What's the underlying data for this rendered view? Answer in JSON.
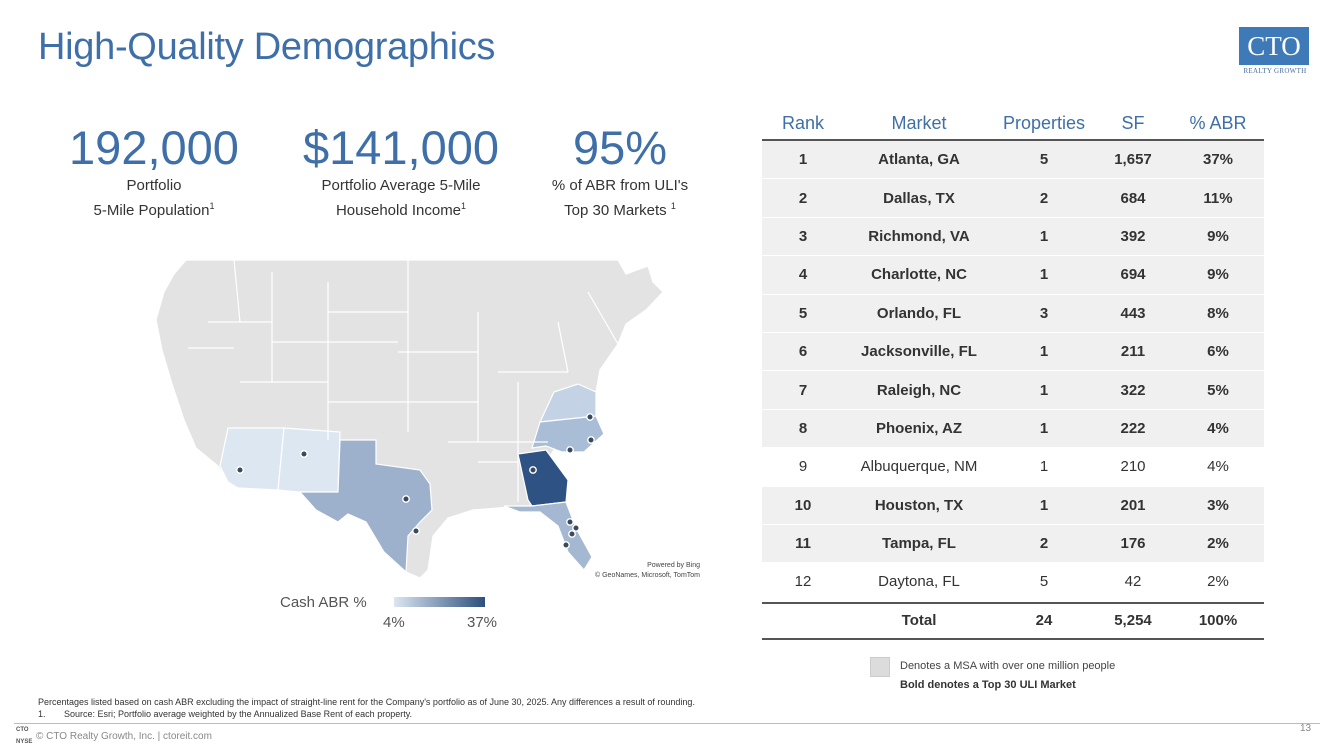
{
  "title": "High-Quality Demographics",
  "logo": {
    "mark": "CTO",
    "sub": "REALTY GROWTH"
  },
  "stats": [
    {
      "value": "192,000",
      "label_line1": "Portfolio",
      "label_line2": "5-Mile Population",
      "sup": "1"
    },
    {
      "value": "$141,000",
      "label_line1": "Portfolio Average 5-Mile",
      "label_line2": "Household Income",
      "sup": "1"
    },
    {
      "value": "95%",
      "label_line1": "% of ABR from ULI's",
      "label_line2": "Top 30 Markets ",
      "sup": "1"
    }
  ],
  "map": {
    "powered_line1": "Powered by Bing",
    "powered_line2": "© GeoNames, Microsoft, TomTom",
    "legend_title": "Cash ABR %",
    "legend_min": "4%",
    "legend_max": "37%",
    "colors": {
      "georgia": "#2e5283",
      "texas": "#9db1cd",
      "florida": "#a4b8d2",
      "north_carolina": "#a9bdd6",
      "virginia": "#c3d2e4",
      "arizona": "#dde7f2",
      "new_mexico": "#dde7f2",
      "base": "#e3e3e3"
    }
  },
  "table": {
    "headers": {
      "rank": "Rank",
      "market": "Market",
      "properties": "Properties",
      "sf": "SF",
      "abr": "% ABR"
    },
    "rows": [
      {
        "rank": "1",
        "market": "Atlanta, GA",
        "properties": "5",
        "sf": "1,657",
        "abr": "37%"
      },
      {
        "rank": "2",
        "market": "Dallas, TX",
        "properties": "2",
        "sf": "684",
        "abr": "11%"
      },
      {
        "rank": "3",
        "market": "Richmond, VA",
        "properties": "1",
        "sf": "392",
        "abr": "9%"
      },
      {
        "rank": "4",
        "market": "Charlotte, NC",
        "properties": "1",
        "sf": "694",
        "abr": "9%"
      },
      {
        "rank": "5",
        "market": "Orlando, FL",
        "properties": "3",
        "sf": "443",
        "abr": "8%"
      },
      {
        "rank": "6",
        "market": "Jacksonville, FL",
        "properties": "1",
        "sf": "211",
        "abr": "6%"
      },
      {
        "rank": "7",
        "market": "Raleigh, NC",
        "properties": "1",
        "sf": "322",
        "abr": "5%"
      },
      {
        "rank": "8",
        "market": "Phoenix, AZ",
        "properties": "1",
        "sf": "222",
        "abr": "4%"
      },
      {
        "rank": "9",
        "market": "Albuquerque, NM",
        "properties": "1",
        "sf": "210",
        "abr": "4%"
      },
      {
        "rank": "10",
        "market": "Houston, TX",
        "properties": "1",
        "sf": "201",
        "abr": "3%"
      },
      {
        "rank": "11",
        "market": "Tampa, FL",
        "properties": "2",
        "sf": "176",
        "abr": "2%"
      },
      {
        "rank": "12",
        "market": "Daytona, FL",
        "properties": "5",
        "sf": "42",
        "abr": "2%"
      }
    ],
    "total": {
      "label": "Total",
      "properties": "24",
      "sf": "5,254",
      "abr": "100%"
    }
  },
  "notes": {
    "msa": "Denotes a MSA with over one million people",
    "bold": "Bold denotes a Top 30 ULI Market"
  },
  "footnotes": {
    "line1": "Percentages listed based on cash ABR excluding the impact of straight-line rent for the Company's portfolio as of June 30, 2025. Any differences a result of rounding.",
    "num": "1.",
    "line2": "Source: Esri; Portfolio average weighted by the Annualized Base Rent of each property."
  },
  "footer": {
    "mini_logo_top": "CTO",
    "mini_logo_bottom": "NYSE",
    "copyright": "© CTO Realty Growth, Inc. | ctoreit.com",
    "page": "13"
  }
}
